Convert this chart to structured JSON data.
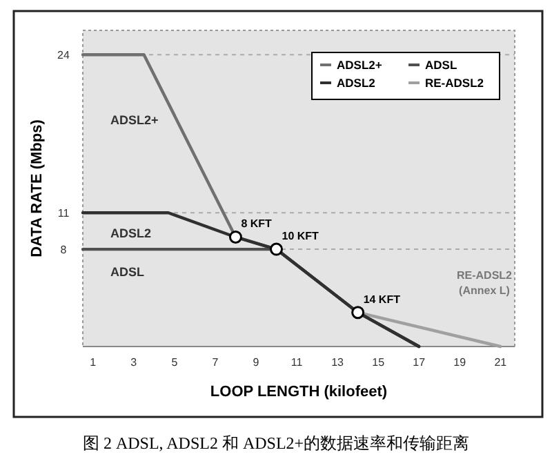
{
  "chart_data": {
    "type": "line",
    "xlabel": "LOOP LENGTH (kilofeet)",
    "ylabel": "DATA RATE (Mbps)",
    "xlim": [
      0.5,
      21.7
    ],
    "xticks": [
      1,
      3,
      5,
      7,
      9,
      11,
      13,
      15,
      17,
      19,
      21
    ],
    "ylim": [
      0,
      26
    ],
    "yticks": [
      8,
      11,
      24
    ],
    "grid": "y",
    "legend": "top right",
    "line_style": "solid",
    "series": [
      {
        "name": "ADSL2+",
        "color": "#707070",
        "x": [
          0.5,
          3.5,
          8,
          10,
          14,
          17
        ],
        "values": [
          24,
          24,
          9,
          8,
          2.8,
          0
        ]
      },
      {
        "name": "ADSL2",
        "color": "#303030",
        "x": [
          0.5,
          4.7,
          8,
          10,
          14,
          17
        ],
        "values": [
          11,
          11,
          9,
          8,
          2.8,
          0
        ]
      },
      {
        "name": "ADSL",
        "color": "#505050",
        "x": [
          0.5,
          10,
          14,
          17
        ],
        "values": [
          8,
          8,
          2.8,
          0
        ]
      },
      {
        "name": "RE-ADSL2",
        "color": "#a0a0a0",
        "x": [
          14,
          21
        ],
        "values": [
          2.8,
          0
        ]
      }
    ],
    "annotations": [
      {
        "text": "8 KFT",
        "x": 8,
        "y": 9
      },
      {
        "text": "10 KFT",
        "x": 10,
        "y": 8
      },
      {
        "text": "14 KFT",
        "x": 14,
        "y": 2.8
      },
      "ADSL2+",
      "ADSL2",
      "ADSL",
      "RE-ADSL2 (Annex L)",
      "图 2  ADSL, ADSL2 和 ADSL2+的数据速率和传输距离"
    ]
  }
}
